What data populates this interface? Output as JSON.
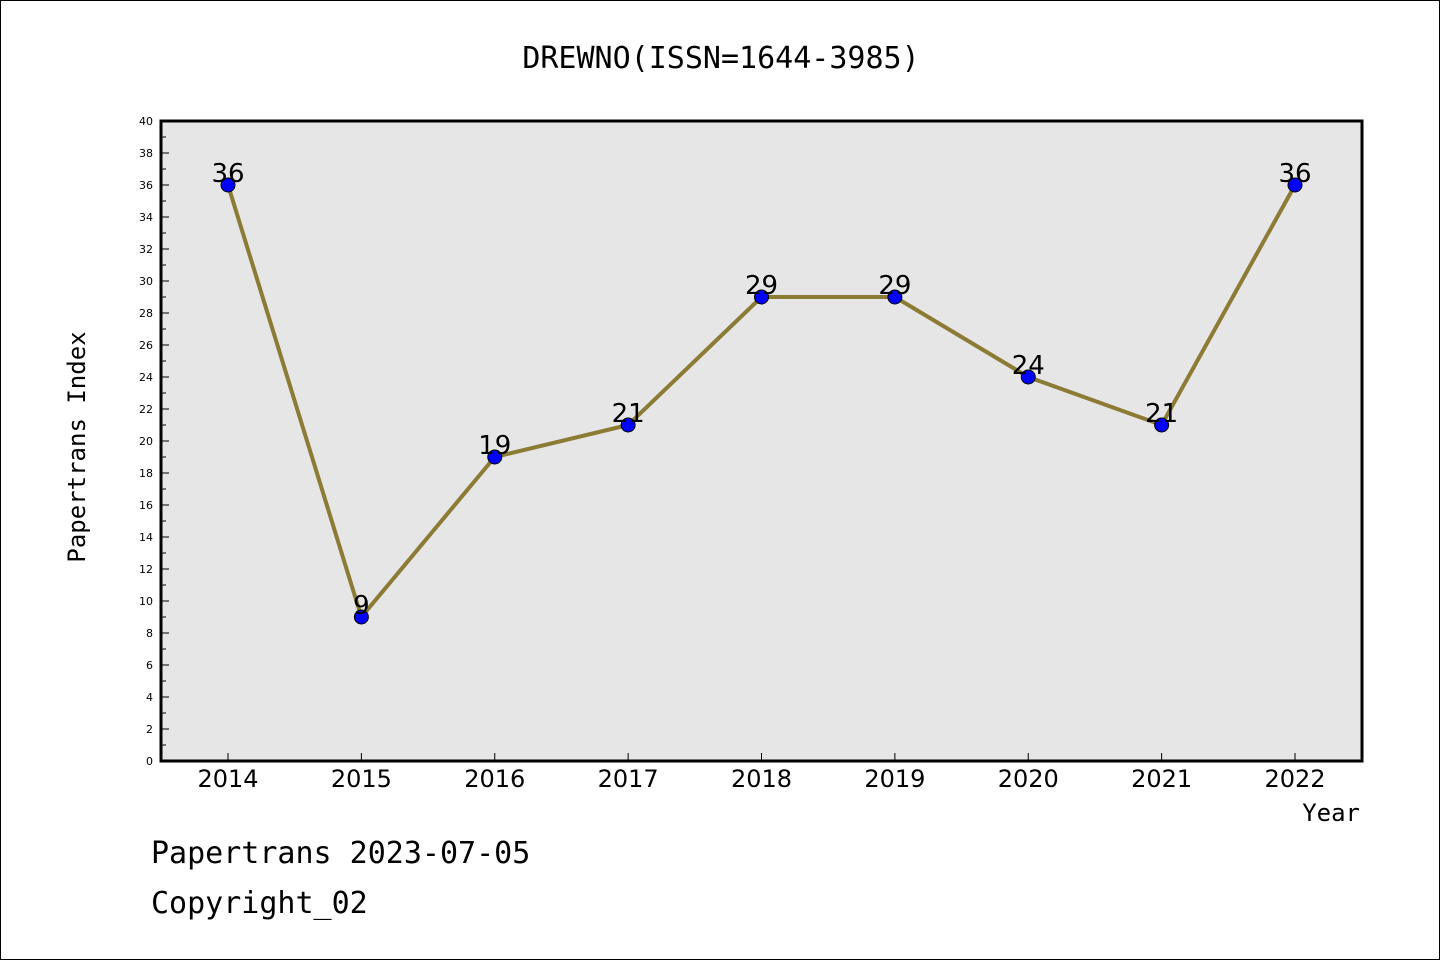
{
  "chart_data": {
    "type": "line",
    "title": "DREWNO(ISSN=1644-3985)",
    "xlabel": "Year",
    "ylabel": "Papertrans Index",
    "categories": [
      "2014",
      "2015",
      "2016",
      "2017",
      "2018",
      "2019",
      "2020",
      "2021",
      "2022"
    ],
    "series": [
      {
        "values": [
          36,
          9,
          19,
          21,
          29,
          29,
          24,
          21,
          36
        ]
      }
    ],
    "ylim": [
      0,
      40
    ],
    "yticks": [
      0,
      2,
      4,
      6,
      8,
      10,
      12,
      14,
      16,
      18,
      20,
      22,
      24,
      26,
      28,
      30,
      32,
      34,
      36,
      38,
      40
    ],
    "grid": false,
    "legend": "none",
    "data_labels": true,
    "colors": {
      "line": "#8B7B35",
      "marker": "#0000FF",
      "plot_background": "#E6E6E6"
    }
  },
  "footer": {
    "date_line": "Papertrans 2023-07-05",
    "copyright": "Copyright_02"
  }
}
